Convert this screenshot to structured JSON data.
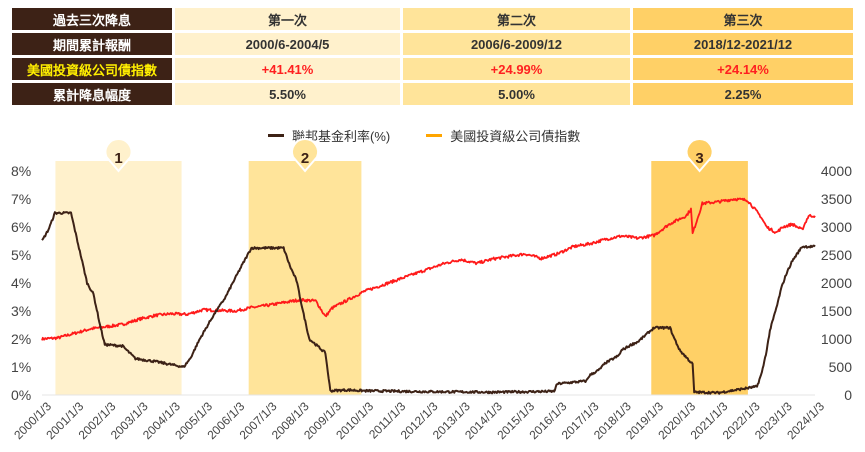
{
  "table": {
    "header_row": {
      "label": "過去三次降息",
      "cols": [
        "第一次",
        "第二次",
        "第三次"
      ]
    },
    "rows": [
      {
        "label": "期間累計報酬",
        "values": [
          "2000/6-2004/5",
          "2006/6-2009/12",
          "2018/12-2021/12"
        ],
        "highlight": false
      },
      {
        "label": "美國投資級公司債指數",
        "values": [
          "+41.41%",
          "+24.99%",
          "+24.14%"
        ],
        "highlight": true
      },
      {
        "label": "累計降息幅度",
        "values": [
          "5.50%",
          "5.00%",
          "2.25%"
        ],
        "highlight": false
      }
    ]
  },
  "legend": [
    {
      "label": "聯邦基金利率(%)",
      "color": "#3d2216"
    },
    {
      "label": "美國投資級公司債指數",
      "color": "#ffa500"
    }
  ],
  "bands": [
    {
      "label": "1",
      "start": "2000/6",
      "end": "2004/5",
      "color": "#fff1cc"
    },
    {
      "label": "2",
      "start": "2006/6",
      "end": "2009/12",
      "color": "#ffe49a"
    },
    {
      "label": "3",
      "start": "2018/12",
      "end": "2021/12",
      "color": "#ffd066"
    }
  ],
  "chart_data": {
    "type": "line",
    "title": "",
    "xlabel": "",
    "ylabel_left": "聯邦基金利率(%)",
    "ylabel_right": "美國投資級公司債指數",
    "x_ticks": [
      "2000/1/3",
      "2001/1/3",
      "2002/1/3",
      "2003/1/3",
      "2004/1/3",
      "2005/1/3",
      "2006/1/3",
      "2007/1/3",
      "2008/1/3",
      "2009/1/3",
      "2010/1/3",
      "2011/1/3",
      "2012/1/3",
      "2013/1/3",
      "2014/1/3",
      "2015/1/3",
      "2016/1/3",
      "2017/1/3",
      "2018/1/3",
      "2019/1/3",
      "2020/1/3",
      "2021/1/3",
      "2022/1/3",
      "2023/1/3",
      "2024/1/3"
    ],
    "y_left_ticks": [
      "0%",
      "1%",
      "2%",
      "3%",
      "4%",
      "5%",
      "6%",
      "7%",
      "8%"
    ],
    "y_right_ticks": [
      "0",
      "500",
      "1000",
      "1500",
      "2000",
      "2500",
      "3000",
      "3500",
      "4000"
    ],
    "ylim_left": [
      0,
      8
    ],
    "ylim_right": [
      0,
      4000
    ],
    "legend_position": "top",
    "grid": false,
    "series": [
      {
        "name": "聯邦基金利率(%)",
        "axis": "left",
        "color": "#3d2216",
        "x": [
          2000.0,
          2000.2,
          2000.4,
          2000.6,
          2000.9,
          2001.0,
          2001.2,
          2001.4,
          2001.6,
          2001.8,
          2001.95,
          2002.5,
          2002.9,
          2003.5,
          2004.4,
          2004.6,
          2004.9,
          2005.3,
          2005.7,
          2006.1,
          2006.5,
          2007.5,
          2007.7,
          2007.9,
          2008.1,
          2008.3,
          2008.8,
          2008.95,
          2009.5,
          2010.0,
          2012.0,
          2014.0,
          2015.9,
          2016.0,
          2016.9,
          2017.0,
          2017.3,
          2017.5,
          2017.9,
          2018.0,
          2018.3,
          2018.5,
          2018.8,
          2019.0,
          2019.5,
          2019.6,
          2019.8,
          2020.2,
          2020.25,
          2021.0,
          2022.2,
          2022.35,
          2022.5,
          2022.6,
          2022.8,
          2022.95,
          2023.1,
          2023.3,
          2023.6,
          2024.0
        ],
        "y": [
          5.5,
          5.9,
          6.5,
          6.5,
          6.5,
          6.0,
          5.0,
          4.0,
          3.6,
          2.5,
          1.8,
          1.75,
          1.3,
          1.2,
          1.0,
          1.3,
          2.0,
          2.8,
          3.5,
          4.4,
          5.25,
          5.25,
          4.6,
          4.1,
          3.0,
          2.0,
          1.5,
          0.15,
          0.18,
          0.15,
          0.12,
          0.1,
          0.13,
          0.4,
          0.5,
          0.7,
          0.9,
          1.15,
          1.4,
          1.6,
          1.8,
          1.9,
          2.2,
          2.4,
          2.4,
          2.1,
          1.6,
          1.1,
          0.1,
          0.08,
          0.3,
          0.8,
          1.6,
          2.3,
          3.1,
          3.8,
          4.3,
          4.8,
          5.3,
          5.3
        ]
      },
      {
        "name": "美國投資級公司債指數",
        "axis": "right",
        "color": "#ff1a1a",
        "x": [
          2000.0,
          2000.5,
          2001.0,
          2001.5,
          2002.0,
          2002.5,
          2003.0,
          2003.5,
          2004.0,
          2004.5,
          2005.0,
          2005.5,
          2006.0,
          2006.5,
          2007.0,
          2007.5,
          2008.0,
          2008.5,
          2008.8,
          2009.0,
          2009.5,
          2010.0,
          2010.5,
          2011.0,
          2011.5,
          2012.0,
          2012.5,
          2013.0,
          2013.5,
          2014.0,
          2015.0,
          2015.5,
          2016.0,
          2016.5,
          2017.0,
          2017.5,
          2018.0,
          2018.5,
          2019.0,
          2019.5,
          2020.0,
          2020.15,
          2020.2,
          2020.5,
          2021.0,
          2021.5,
          2021.9,
          2022.3,
          2022.5,
          2022.8,
          2023.0,
          2023.3,
          2023.6,
          2023.8,
          2024.0
        ],
        "y": [
          1000,
          1020,
          1100,
          1180,
          1220,
          1260,
          1350,
          1420,
          1450,
          1440,
          1520,
          1510,
          1500,
          1560,
          1600,
          1650,
          1700,
          1680,
          1400,
          1550,
          1700,
          1850,
          1950,
          2050,
          2150,
          2250,
          2350,
          2420,
          2350,
          2430,
          2520,
          2440,
          2520,
          2650,
          2700,
          2780,
          2840,
          2800,
          2850,
          3060,
          3200,
          3320,
          2880,
          3420,
          3450,
          3500,
          3480,
          3200,
          3000,
          2900,
          3000,
          3050,
          2950,
          3200,
          3200
        ]
      }
    ]
  }
}
